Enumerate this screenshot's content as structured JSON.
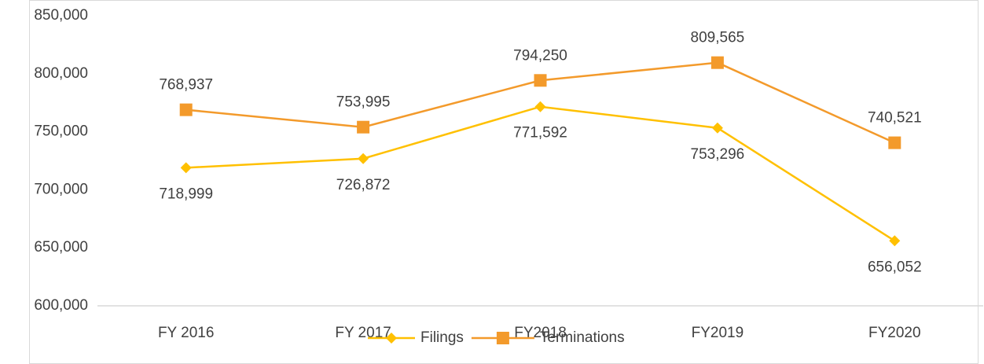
{
  "chart_data": {
    "type": "line",
    "categories": [
      "FY 2016",
      "FY 2017",
      "FY2018",
      "FY2019",
      "FY2020"
    ],
    "series": [
      {
        "name": "Filings",
        "color": "#FFC000",
        "marker": "diamond",
        "label_position": "below",
        "values": [
          718999,
          726872,
          771592,
          753296,
          656052
        ],
        "value_labels": [
          "718,999",
          "726,872",
          "771,592",
          "753,296",
          "656,052"
        ]
      },
      {
        "name": "Terminations",
        "color": "#F39A2B",
        "marker": "square",
        "label_position": "above",
        "values": [
          768937,
          753995,
          794250,
          809565,
          740521
        ],
        "value_labels": [
          "768,937",
          "753,995",
          "794,250",
          "809,565",
          "740,521"
        ]
      }
    ],
    "ylim": [
      600000,
      850000
    ],
    "yticks": [
      {
        "value": 600000,
        "label": "600,000"
      },
      {
        "value": 650000,
        "label": "650,000"
      },
      {
        "value": 700000,
        "label": "700,000"
      },
      {
        "value": 750000,
        "label": "750,000"
      },
      {
        "value": 800000,
        "label": "800,000"
      },
      {
        "value": 850000,
        "label": "850,000"
      }
    ],
    "grid": false,
    "legend": "bottom"
  }
}
